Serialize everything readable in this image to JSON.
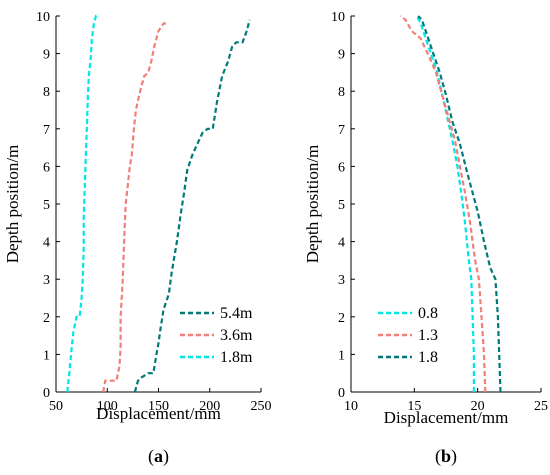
{
  "chart_data": [
    {
      "type": "line",
      "panel_label": "(a)",
      "panel_letter": "a",
      "xlabel": "Displacement/mm",
      "ylabel": "Depth position/m",
      "xlim": [
        50,
        250
      ],
      "ylim": [
        0,
        10
      ],
      "xticks": [
        50,
        100,
        150,
        200,
        250
      ],
      "yticks": [
        0,
        1,
        2,
        3,
        4,
        5,
        6,
        7,
        8,
        9,
        10
      ],
      "grid": false,
      "legend_position": "lower-right",
      "series": [
        {
          "name": "5.4m",
          "color": "#007a78",
          "x": [
            127,
            130,
            134,
            140,
            145,
            148,
            150,
            152,
            155,
            160,
            163,
            168,
            172,
            175,
            178,
            183,
            188,
            193,
            198,
            203,
            207,
            212,
            218,
            222,
            226,
            232,
            236,
            239
          ],
          "y": [
            0,
            0.3,
            0.4,
            0.5,
            0.5,
            1.0,
            1.3,
            1.7,
            2.2,
            2.6,
            3.2,
            4.0,
            4.8,
            5.3,
            5.9,
            6.3,
            6.6,
            6.9,
            7.0,
            7.0,
            7.7,
            8.4,
            8.8,
            9.2,
            9.3,
            9.3,
            9.6,
            9.9
          ]
        },
        {
          "name": "3.6m",
          "color": "#f07f78",
          "x": [
            96,
            98,
            103,
            109,
            112,
            113,
            113,
            115,
            116,
            117,
            118,
            120,
            122,
            124,
            126,
            128,
            132,
            136,
            140,
            143,
            146,
            150,
            155,
            158
          ],
          "y": [
            0,
            0.3,
            0.3,
            0.3,
            0.7,
            1.2,
            2.0,
            2.9,
            3.7,
            4.4,
            5.0,
            5.5,
            6.0,
            6.3,
            7.0,
            7.5,
            8.0,
            8.4,
            8.5,
            8.8,
            9.2,
            9.6,
            9.8,
            9.8
          ]
        },
        {
          "name": "1.8m",
          "color": "#00e6e6",
          "x": [
            61,
            63,
            65,
            67,
            70,
            73,
            75,
            76,
            77,
            77,
            78,
            79,
            80,
            81,
            82,
            84,
            85,
            87,
            89,
            92
          ],
          "y": [
            0,
            0.5,
            1.1,
            1.6,
            2.0,
            2.0,
            2.5,
            3.0,
            3.8,
            4.6,
            5.4,
            6.2,
            7.0,
            7.8,
            8.4,
            8.9,
            9.4,
            9.8,
            10.0,
            10.0
          ]
        }
      ]
    },
    {
      "type": "line",
      "panel_label": "(b)",
      "panel_letter": "b",
      "xlabel": "Displacement/mm",
      "ylabel": "Depth position/m",
      "xlim": [
        10,
        25
      ],
      "ylim": [
        0,
        10
      ],
      "xticks": [
        10,
        15,
        20,
        25
      ],
      "yticks": [
        0,
        1,
        2,
        3,
        4,
        5,
        6,
        7,
        8,
        9,
        10
      ],
      "grid": false,
      "legend_position": "lower-left",
      "series": [
        {
          "name": "0.8",
          "color": "#00e6e6",
          "x": [
            19.7,
            19.7,
            19.6,
            19.5,
            19.3,
            19.0,
            18.7,
            18.4,
            18.0,
            17.6,
            17.2,
            16.8,
            16.3,
            15.8,
            15.5,
            15.2
          ],
          "y": [
            0,
            1,
            2,
            3,
            3.5,
            4.5,
            5.3,
            6.0,
            6.7,
            7.3,
            7.9,
            8.5,
            9.0,
            9.5,
            9.8,
            10
          ]
        },
        {
          "name": "1.3",
          "color": "#f07f78",
          "x": [
            20.6,
            20.5,
            20.3,
            20.1,
            19.8,
            19.4,
            19.0,
            18.6,
            18.2,
            17.7,
            17.2,
            16.7,
            16.2,
            15.5,
            14.8,
            14.3,
            13.9
          ],
          "y": [
            0,
            1,
            2,
            3,
            3.5,
            4.5,
            5.3,
            6.0,
            6.7,
            7.3,
            7.9,
            8.5,
            8.9,
            9.4,
            9.6,
            9.9,
            10
          ]
        },
        {
          "name": "1.8",
          "color": "#007a78",
          "x": [
            21.8,
            21.7,
            21.6,
            21.4,
            21.0,
            20.5,
            20.0,
            19.6,
            19.2,
            18.6,
            18.0,
            17.5,
            17.0,
            16.5,
            16.0,
            15.6,
            15.3
          ],
          "y": [
            0,
            1,
            2,
            3,
            3.3,
            4.0,
            4.8,
            5.3,
            5.8,
            6.6,
            7.2,
            7.9,
            8.5,
            9.0,
            9.5,
            9.9,
            10
          ]
        }
      ]
    }
  ]
}
